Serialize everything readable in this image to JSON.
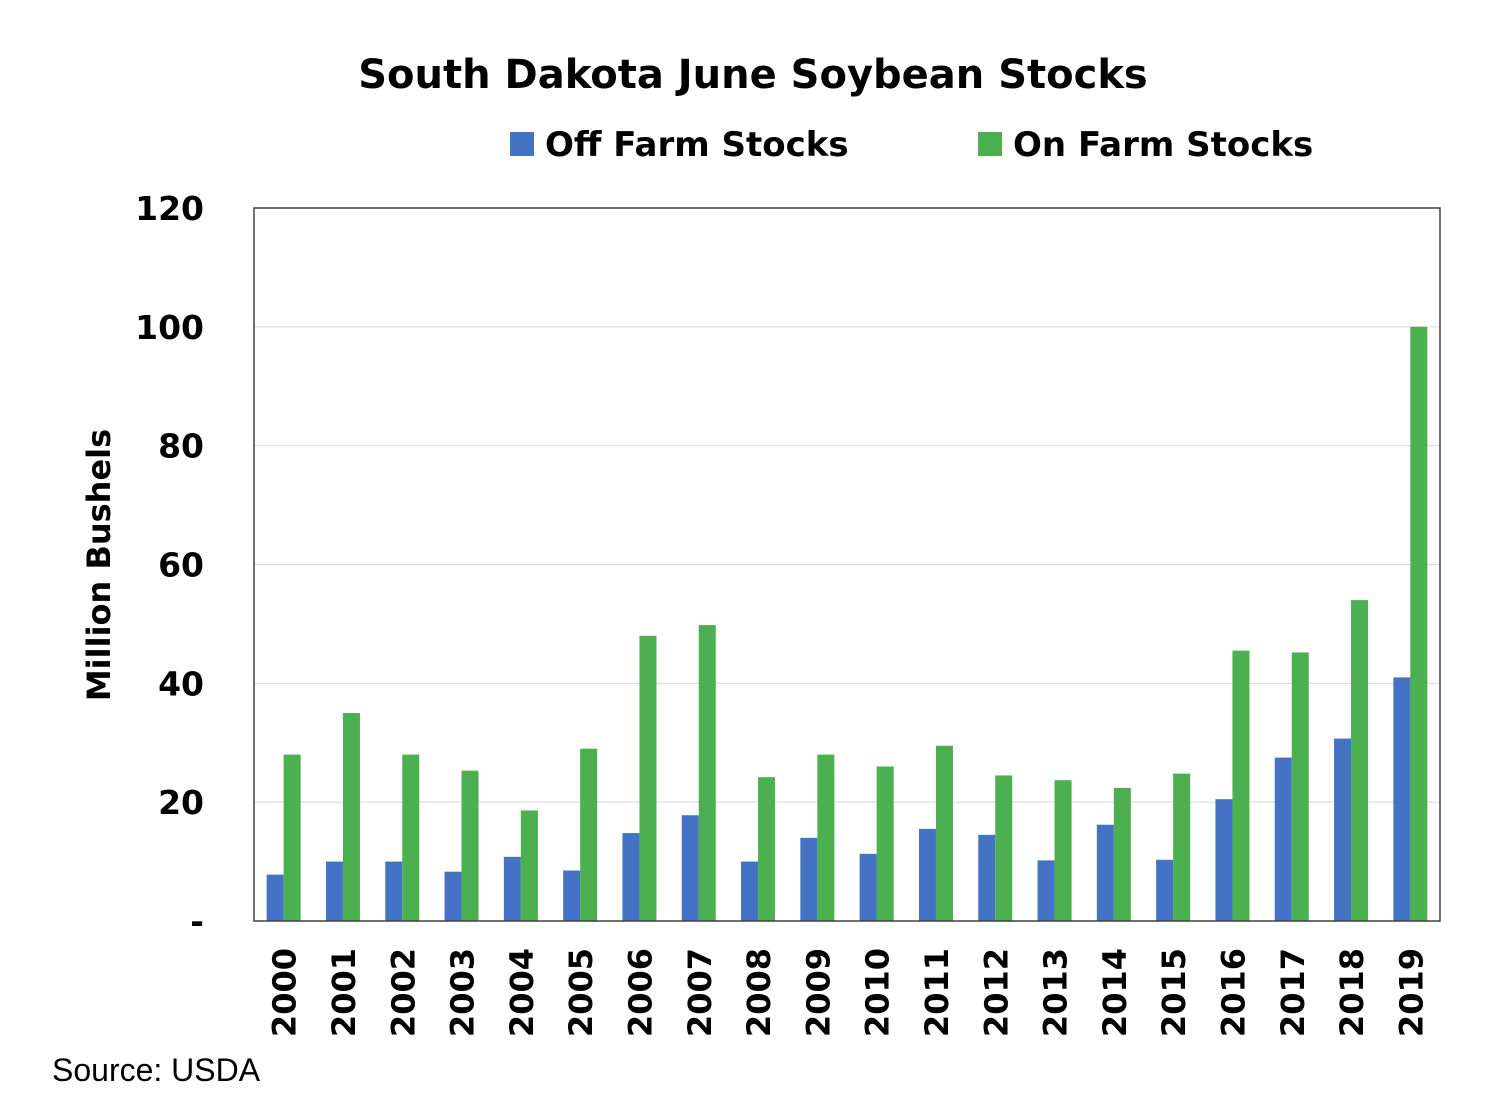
{
  "chart_data": {
    "type": "bar",
    "title": "South Dakota June Soybean Stocks",
    "ylabel": "Million Bushels",
    "xlabel": "",
    "ylim": [
      0,
      120
    ],
    "yticks": [
      0,
      20,
      40,
      60,
      80,
      100,
      120
    ],
    "ytick_labels": [
      "-",
      "20",
      "40",
      "60",
      "80",
      "100",
      "120"
    ],
    "grid": true,
    "legend_position": "top",
    "categories": [
      "2000",
      "2001",
      "2002",
      "2003",
      "2004",
      "2005",
      "2006",
      "2007",
      "2008",
      "2009",
      "2010",
      "2011",
      "2012",
      "2013",
      "2014",
      "2015",
      "2016",
      "2017",
      "2018",
      "2019"
    ],
    "series": [
      {
        "name": "Off Farm Stocks",
        "color": "#4472c4",
        "values": [
          7.8,
          10,
          10,
          8.3,
          10.8,
          8.5,
          14.8,
          17.8,
          10,
          14,
          11.3,
          15.5,
          14.5,
          10.2,
          16.2,
          10.3,
          20.5,
          27.5,
          30.7,
          41
        ]
      },
      {
        "name": "On Farm Stocks",
        "color": "#4caf50",
        "values": [
          28,
          35,
          28,
          25.3,
          18.6,
          29,
          48,
          49.8,
          24.2,
          28,
          26,
          29.5,
          24.5,
          23.7,
          22.4,
          24.8,
          45.5,
          45.2,
          54,
          100
        ]
      }
    ]
  },
  "footer": {
    "source": "Source:  USDA"
  }
}
